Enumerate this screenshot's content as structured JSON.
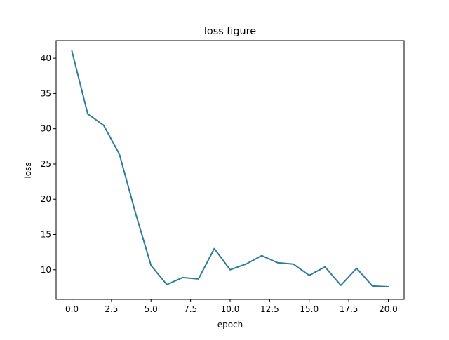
{
  "chart_data": {
    "type": "line",
    "title": "loss figure",
    "xlabel": "epoch",
    "ylabel": "loss",
    "xlim": [
      -1.0,
      21.0
    ],
    "ylim": [
      5.8,
      42.5
    ],
    "xticks": [
      0.0,
      2.5,
      5.0,
      7.5,
      10.0,
      12.5,
      15.0,
      17.5,
      20.0
    ],
    "xtick_labels": [
      "0.0",
      "2.5",
      "5.0",
      "7.5",
      "10.0",
      "12.5",
      "15.0",
      "17.5",
      "20.0"
    ],
    "yticks": [
      10,
      15,
      20,
      25,
      30,
      35,
      40
    ],
    "ytick_labels": [
      "10",
      "15",
      "20",
      "25",
      "30",
      "35",
      "40"
    ],
    "grid": false,
    "legend": "none",
    "series": [
      {
        "color": "#2e7c9c",
        "x": [
          0,
          1,
          2,
          3,
          4,
          5,
          6,
          7,
          8,
          9,
          10,
          11,
          12,
          13,
          14,
          15,
          16,
          17,
          18,
          19,
          20
        ],
        "y": [
          41.0,
          32.1,
          30.5,
          26.4,
          18.2,
          10.6,
          7.9,
          8.9,
          8.7,
          13.0,
          10.0,
          10.8,
          12.0,
          11.0,
          10.8,
          9.2,
          10.4,
          7.8,
          10.2,
          7.7,
          7.6
        ]
      }
    ]
  }
}
